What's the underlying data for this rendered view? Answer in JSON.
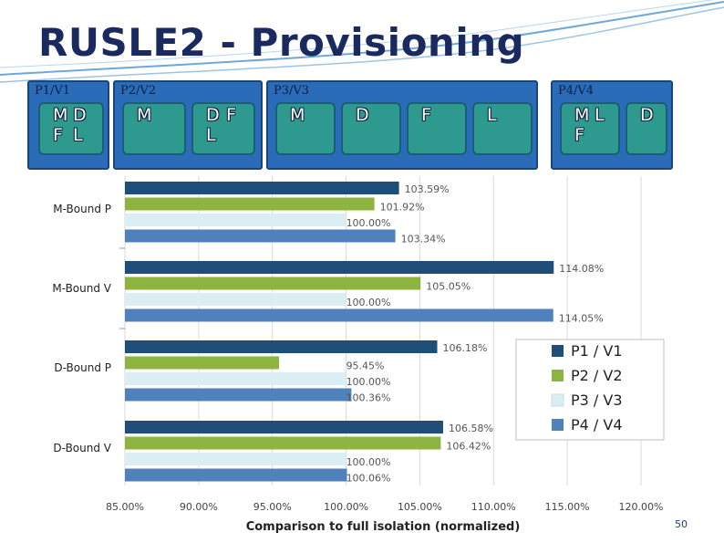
{
  "slide": {
    "title": "RUSLE2 - Provisioning",
    "page_number": "50"
  },
  "configs": [
    {
      "label": "P1/V1",
      "vms": [
        [
          "M",
          "D",
          "F",
          "L"
        ]
      ]
    },
    {
      "label": "P2/V2",
      "vms": [
        [
          "M"
        ],
        [
          "D",
          "F",
          "L"
        ]
      ]
    },
    {
      "label": "P3/V3",
      "vms": [
        [
          "M"
        ],
        [
          "D"
        ],
        [
          "F"
        ],
        [
          "L"
        ]
      ]
    },
    {
      "label": "P4/V4",
      "vms": [
        [
          "M",
          "L",
          "F"
        ],
        [
          "D"
        ]
      ]
    }
  ],
  "chart_data": {
    "type": "bar",
    "orientation": "horizontal",
    "categories": [
      "M-Bound P",
      "M-Bound V",
      "D-Bound P",
      "D-Bound V"
    ],
    "series": [
      {
        "name": "P1 / V1",
        "values": [
          103.59,
          114.08,
          106.18,
          106.58
        ],
        "labels": [
          "103.59%",
          "114.08%",
          "106.18%",
          "106.58%"
        ]
      },
      {
        "name": "P2 / V2",
        "values": [
          101.92,
          105.05,
          95.45,
          106.42
        ],
        "labels": [
          "101.92%",
          "105.05%",
          "95.45%",
          "106.42%"
        ]
      },
      {
        "name": "P3 / V3",
        "values": [
          100.0,
          100.0,
          100.0,
          100.0
        ],
        "labels": [
          "100.00%",
          "100.00%",
          "100.00%",
          "100.00%"
        ]
      },
      {
        "name": "P4 / V4",
        "values": [
          103.34,
          114.05,
          100.36,
          100.06
        ],
        "labels": [
          "103.34%",
          "114.05%",
          "100.36%",
          "100.06%"
        ]
      }
    ],
    "xlabel": "Comparison to full isolation (normalized)",
    "xlim": [
      85,
      120
    ],
    "xticks": [
      85,
      90,
      95,
      100,
      105,
      110,
      115,
      120
    ],
    "xtick_labels": [
      "85.00%",
      "90.00%",
      "95.00%",
      "100.00%",
      "105.00%",
      "110.00%",
      "115.00%",
      "120.00%"
    ],
    "grid": "vertical",
    "legend_position": "right"
  },
  "colors": {
    "series": [
      "#1f4e79",
      "#8db43f",
      "#daeef3",
      "#4f81bd"
    ],
    "title": "#1a2a5e",
    "config_box": "#2a6cb8",
    "vm_box": "#2e9a8f"
  }
}
